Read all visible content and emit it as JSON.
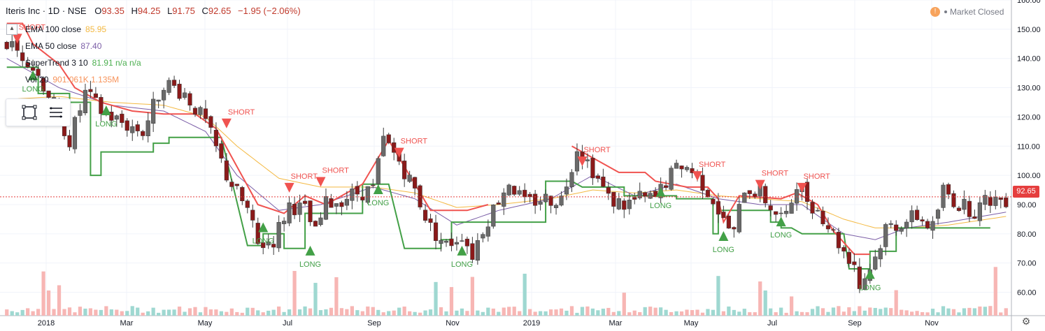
{
  "header": {
    "symbol": "Iteris Inc · 1D · NSE",
    "open_label": "O",
    "open": "93.35",
    "high_label": "H",
    "high": "94.25",
    "low_label": "L",
    "low": "91.75",
    "close_label": "C",
    "close": "92.65",
    "change": "−1.95 (−2.06%)"
  },
  "legend": [
    {
      "name": "EMA 100 close",
      "value": "85.95",
      "color": "#f4b942"
    },
    {
      "name": "EMA 50 close",
      "value": "87.40",
      "color": "#7b5ea7"
    },
    {
      "name": "SuperTrend 3 10",
      "value": "81.91 n/a n/a",
      "color": "#4caf50"
    },
    {
      "name": "Vol 20",
      "value": "901.061K 1.135M",
      "color": "#f7945c"
    }
  ],
  "market_status": "Market Closed",
  "last_price": "92.65",
  "colors": {
    "up": "#26a69a",
    "down": "#ef5350",
    "long": "#43a047",
    "short": "#f05350",
    "ema100": "#f4b942",
    "ema50": "#7b5ea7",
    "price_line": "#e53e3e"
  },
  "icons": {
    "toolbox": [
      "rectangle-select-icon",
      "menu-lines-icon"
    ],
    "settings": "gear-icon",
    "collapse": "chevron-up-icon",
    "warning": "warning-icon"
  },
  "chart_data": {
    "type": "candlestick",
    "y_axis": {
      "ticks": [
        160,
        150,
        140,
        130,
        120,
        110,
        100,
        90,
        80,
        70,
        60
      ],
      "ylim": [
        52,
        160
      ],
      "side": "right"
    },
    "x_axis": {
      "ticks": [
        "2018",
        "Mar",
        "May",
        "Jul",
        "Sep",
        "Nov",
        "2019",
        "Mar",
        "May",
        "Jul",
        "Sep",
        "Nov"
      ]
    },
    "grid": true,
    "price_path": [
      [
        0,
        145
      ],
      [
        4,
        140
      ],
      [
        8,
        128
      ],
      [
        12,
        112
      ],
      [
        15,
        128
      ],
      [
        18,
        122
      ],
      [
        22,
        118
      ],
      [
        26,
        115
      ],
      [
        30,
        132
      ],
      [
        34,
        128
      ],
      [
        38,
        118
      ],
      [
        42,
        100
      ],
      [
        46,
        88
      ],
      [
        48,
        76
      ],
      [
        51,
        78
      ],
      [
        54,
        90
      ],
      [
        57,
        88
      ],
      [
        59,
        80
      ],
      [
        61,
        90
      ],
      [
        64,
        92
      ],
      [
        67,
        94
      ],
      [
        70,
        95
      ],
      [
        72,
        112
      ],
      [
        75,
        105
      ],
      [
        78,
        95
      ],
      [
        81,
        82
      ],
      [
        84,
        76
      ],
      [
        87,
        80
      ],
      [
        89,
        73
      ],
      [
        91,
        82
      ],
      [
        94,
        92
      ],
      [
        96,
        98
      ],
      [
        99,
        90
      ],
      [
        102,
        92
      ],
      [
        106,
        92
      ],
      [
        109,
        110
      ],
      [
        112,
        102
      ],
      [
        115,
        92
      ],
      [
        118,
        90
      ],
      [
        121,
        92
      ],
      [
        124,
        92
      ],
      [
        126,
        98
      ],
      [
        129,
        104
      ],
      [
        132,
        100
      ],
      [
        135,
        92
      ],
      [
        137,
        84
      ],
      [
        139,
        80
      ],
      [
        141,
        96
      ],
      [
        144,
        94
      ],
      [
        147,
        87
      ],
      [
        149,
        85
      ],
      [
        151,
        98
      ],
      [
        153,
        92
      ],
      [
        156,
        86
      ],
      [
        158,
        80
      ],
      [
        160,
        74
      ],
      [
        162,
        70
      ],
      [
        163,
        62
      ],
      [
        166,
        72
      ],
      [
        168,
        82
      ],
      [
        171,
        84
      ],
      [
        174,
        86
      ],
      [
        177,
        82
      ],
      [
        179,
        95
      ],
      [
        182,
        90
      ],
      [
        185,
        88
      ],
      [
        188,
        92
      ],
      [
        191,
        92
      ]
    ],
    "ema50": [
      [
        0,
        140
      ],
      [
        10,
        130
      ],
      [
        20,
        124
      ],
      [
        30,
        122
      ],
      [
        38,
        115
      ],
      [
        44,
        100
      ],
      [
        52,
        88
      ],
      [
        60,
        90
      ],
      [
        70,
        96
      ],
      [
        78,
        92
      ],
      [
        86,
        83
      ],
      [
        94,
        88
      ],
      [
        104,
        92
      ],
      [
        112,
        100
      ],
      [
        120,
        93
      ],
      [
        128,
        97
      ],
      [
        136,
        92
      ],
      [
        144,
        90
      ],
      [
        152,
        90
      ],
      [
        160,
        80
      ],
      [
        166,
        78
      ],
      [
        172,
        82
      ],
      [
        180,
        84
      ],
      [
        191,
        87.4
      ]
    ],
    "ema100": [
      [
        0,
        126
      ],
      [
        10,
        127
      ],
      [
        20,
        125
      ],
      [
        30,
        124
      ],
      [
        38,
        120
      ],
      [
        44,
        110
      ],
      [
        52,
        99
      ],
      [
        60,
        96
      ],
      [
        70,
        96
      ],
      [
        78,
        94
      ],
      [
        86,
        89
      ],
      [
        94,
        90
      ],
      [
        104,
        92
      ],
      [
        112,
        95
      ],
      [
        120,
        94
      ],
      [
        128,
        95
      ],
      [
        136,
        93
      ],
      [
        144,
        92
      ],
      [
        152,
        91
      ],
      [
        160,
        85
      ],
      [
        166,
        82
      ],
      [
        172,
        82
      ],
      [
        180,
        83
      ],
      [
        191,
        85.95
      ]
    ],
    "supertrend_long": [
      [
        0,
        137
      ],
      [
        6,
        137
      ],
      [
        6,
        128
      ],
      [
        12,
        128
      ],
      [
        12,
        125
      ],
      [
        16,
        125
      ],
      [
        16,
        100
      ],
      [
        18,
        100
      ],
      [
        18,
        108
      ],
      [
        28,
        108
      ],
      [
        28,
        111
      ],
      [
        31,
        111
      ],
      [
        31,
        113
      ],
      [
        41,
        113
      ],
      [
        46,
        76
      ],
      [
        49,
        76
      ],
      [
        49,
        80
      ],
      [
        53,
        80
      ],
      [
        53,
        75
      ],
      [
        57,
        75
      ],
      [
        57,
        87
      ],
      [
        68,
        87
      ],
      [
        68,
        97
      ],
      [
        73,
        97
      ],
      [
        76,
        75
      ],
      [
        83,
        75
      ],
      [
        83,
        78
      ],
      [
        85,
        78
      ],
      [
        85,
        84
      ],
      [
        103,
        84
      ],
      [
        103,
        98
      ],
      [
        108,
        98
      ],
      [
        110,
        96
      ],
      [
        118,
        96
      ],
      [
        118,
        93
      ],
      [
        128,
        93
      ],
      [
        128,
        92
      ],
      [
        135,
        92
      ],
      [
        135,
        80
      ],
      [
        136,
        80
      ],
      [
        136,
        88
      ],
      [
        146,
        88
      ],
      [
        146,
        84
      ],
      [
        148,
        84
      ],
      [
        148,
        82
      ],
      [
        150,
        82
      ],
      [
        152,
        80
      ],
      [
        160,
        80
      ],
      [
        161,
        68
      ],
      [
        165,
        68
      ],
      [
        165,
        74
      ],
      [
        170,
        74
      ],
      [
        170,
        82
      ],
      [
        188,
        82
      ]
    ],
    "supertrend_short": [
      [
        0,
        152
      ],
      [
        3,
        152
      ],
      [
        5,
        145
      ],
      [
        10,
        138
      ],
      [
        13,
        130
      ],
      [
        18,
        125
      ],
      [
        24,
        122
      ],
      [
        30,
        121
      ],
      [
        36,
        121
      ],
      [
        40,
        116
      ],
      [
        44,
        103
      ],
      [
        48,
        90
      ],
      [
        53,
        87
      ],
      [
        57,
        93
      ],
      [
        61,
        90
      ],
      [
        64,
        93
      ],
      [
        68,
        97
      ],
      [
        73,
        112
      ],
      [
        77,
        100
      ],
      [
        81,
        88
      ],
      [
        88,
        88
      ],
      [
        92,
        90
      ],
      [
        108,
        110
      ],
      [
        112,
        106
      ],
      [
        117,
        101
      ],
      [
        122,
        101
      ],
      [
        124,
        98
      ],
      [
        130,
        96
      ],
      [
        134,
        96
      ],
      [
        136,
        92
      ],
      [
        137,
        84
      ],
      [
        140,
        93
      ],
      [
        148,
        92
      ],
      [
        151,
        94
      ],
      [
        155,
        90
      ],
      [
        158,
        81
      ],
      [
        162,
        73
      ],
      [
        165,
        73
      ]
    ],
    "signals": [
      {
        "type": "SHORT",
        "x": 2,
        "y": 147
      },
      {
        "type": "LONG",
        "x": 5,
        "y": 134
      },
      {
        "type": "LONG",
        "x": 19,
        "y": 122
      },
      {
        "type": "SHORT",
        "x": 42,
        "y": 118
      },
      {
        "type": "LONG",
        "x": 49,
        "y": 82
      },
      {
        "type": "SHORT",
        "x": 54,
        "y": 96
      },
      {
        "type": "SHORT",
        "x": 60,
        "y": 98
      },
      {
        "type": "LONG",
        "x": 58,
        "y": 74
      },
      {
        "type": "LONG",
        "x": 71,
        "y": 95
      },
      {
        "type": "SHORT",
        "x": 75,
        "y": 108
      },
      {
        "type": "LONG",
        "x": 87,
        "y": 74
      },
      {
        "type": "SHORT",
        "x": 110,
        "y": 105
      },
      {
        "type": "LONG",
        "x": 125,
        "y": 94
      },
      {
        "type": "SHORT",
        "x": 132,
        "y": 100
      },
      {
        "type": "LONG",
        "x": 137,
        "y": 79
      },
      {
        "type": "SHORT",
        "x": 144,
        "y": 97
      },
      {
        "type": "LONG",
        "x": 148,
        "y": 84
      },
      {
        "type": "SHORT",
        "x": 152,
        "y": 96
      },
      {
        "type": "LONG",
        "x": 165,
        "y": 66
      }
    ]
  }
}
